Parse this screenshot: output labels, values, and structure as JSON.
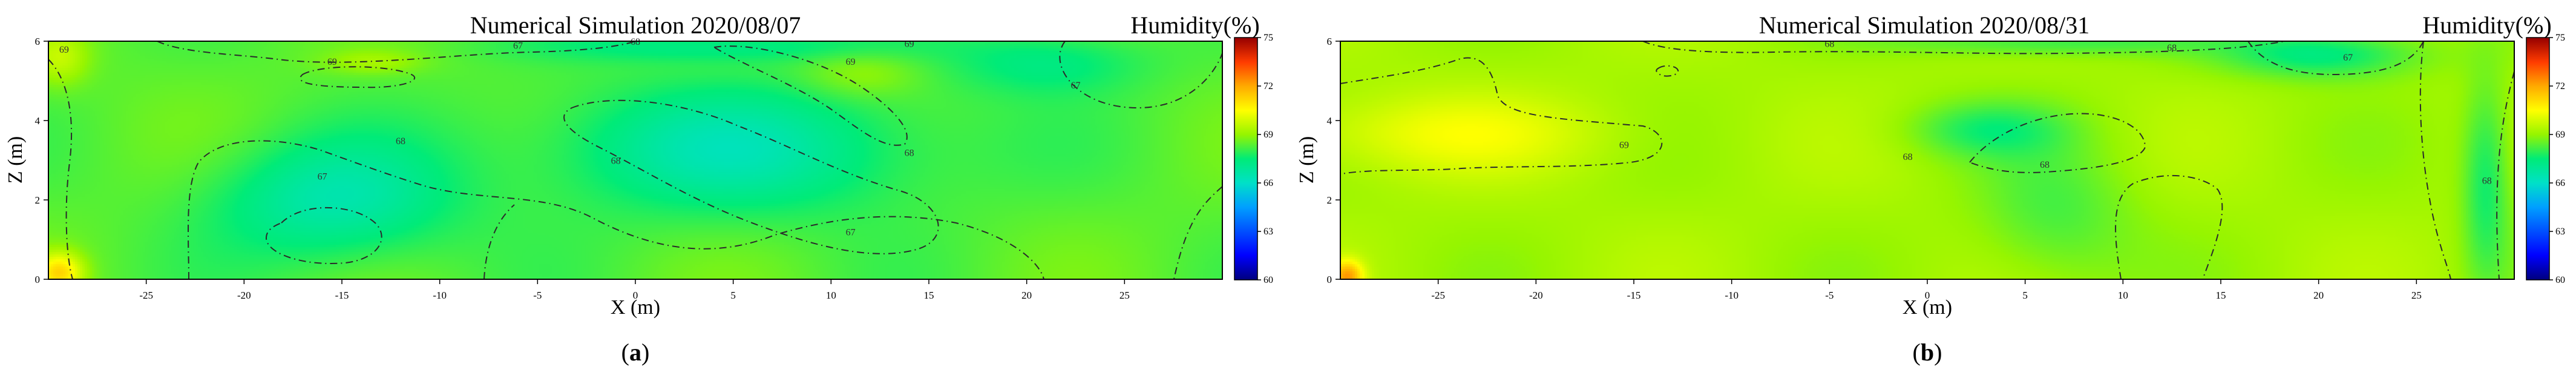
{
  "chart_data": [
    {
      "type": "heatmap",
      "panel_label": "a",
      "title": "Numerical Simulation 2020/08/07",
      "xlabel": "X (m)",
      "ylabel": "Z (m)",
      "colorbar_title": "Humidity(%)",
      "xlim": [
        -30,
        30
      ],
      "ylim": [
        0,
        6
      ],
      "x_ticks": [
        -25,
        -20,
        -15,
        -10,
        -5,
        0,
        5,
        10,
        15,
        20,
        25
      ],
      "y_ticks": [
        0,
        2,
        4,
        6
      ],
      "colorbar_ticks": [
        60,
        63,
        66,
        69,
        72,
        75
      ],
      "colorbar_range": [
        60,
        75
      ],
      "background_value": 68.4,
      "field": [
        {
          "x": -15.5,
          "z": 2.0,
          "value": 66.6,
          "sx": 6,
          "sz": 1.5
        },
        {
          "x": 5.0,
          "z": 3.3,
          "value": 66.6,
          "sx": 10,
          "sz": 1.6
        },
        {
          "x": 21.0,
          "z": 5.5,
          "value": 67.3,
          "sx": 5,
          "sz": 0.8
        },
        {
          "x": 4.0,
          "z": 5.9,
          "value": 67.3,
          "sx": 9,
          "sz": 0.4
        },
        {
          "x": 11.5,
          "z": 5.2,
          "value": 69.2,
          "sx": 3,
          "sz": 0.6
        },
        {
          "x": -13.5,
          "z": 5.5,
          "value": 69.2,
          "sx": 2.5,
          "sz": 0.3
        },
        {
          "x": -29.5,
          "z": 0.2,
          "value": 71.0,
          "sx": 1.2,
          "sz": 0.5
        },
        {
          "x": -29.5,
          "z": 5.6,
          "value": 69.6,
          "sx": 1.5,
          "sz": 0.7
        }
      ],
      "contour_labels": [
        {
          "x": -15.5,
          "z": 5.5,
          "text": "69"
        },
        {
          "x": -29.2,
          "z": 5.8,
          "text": "69"
        },
        {
          "x": -16.0,
          "z": 2.6,
          "text": "67"
        },
        {
          "x": -12.0,
          "z": 3.5,
          "text": "68"
        },
        {
          "x": -1.0,
          "z": 3.0,
          "text": "68"
        },
        {
          "x": 14.0,
          "z": 3.2,
          "text": "68"
        },
        {
          "x": 11.0,
          "z": 1.2,
          "text": "67"
        },
        {
          "x": 22.5,
          "z": 4.9,
          "text": "67"
        },
        {
          "x": 11.0,
          "z": 5.5,
          "text": "69"
        },
        {
          "x": -6.0,
          "z": 5.9,
          "text": "67"
        },
        {
          "x": 0.0,
          "z": 6.0,
          "text": "68"
        },
        {
          "x": 14.0,
          "z": 5.95,
          "text": "69"
        }
      ]
    },
    {
      "type": "heatmap",
      "panel_label": "b",
      "title": "Numerical Simulation 2020/08/31",
      "xlabel": "X (m)",
      "ylabel": "Z (m)",
      "colorbar_title": "Humidity(%)",
      "xlim": [
        -30,
        30
      ],
      "ylim": [
        0,
        6
      ],
      "x_ticks": [
        -25,
        -20,
        -15,
        -10,
        -5,
        0,
        5,
        10,
        15,
        20,
        25
      ],
      "y_ticks": [
        0,
        2,
        4,
        6
      ],
      "colorbar_ticks": [
        60,
        63,
        66,
        69,
        72,
        75
      ],
      "colorbar_range": [
        60,
        75
      ],
      "background_value": 69.2,
      "field": [
        {
          "x": -25.0,
          "z": 3.7,
          "value": 70.2,
          "sx": 9,
          "sz": 1.0
        },
        {
          "x": 3.0,
          "z": 3.8,
          "value": 67.9,
          "sx": 4,
          "sz": 0.7
        },
        {
          "x": 6.5,
          "z": 1.6,
          "value": 68.2,
          "sx": 4,
          "sz": 1.8
        },
        {
          "x": 20.0,
          "z": 5.7,
          "value": 67.3,
          "sx": 5,
          "sz": 0.6
        },
        {
          "x": 6.0,
          "z": 6.0,
          "value": 68.0,
          "sx": 8,
          "sz": 0.35
        },
        {
          "x": 28.5,
          "z": 2.5,
          "value": 67.6,
          "sx": 1.2,
          "sz": 2.5
        },
        {
          "x": -29.7,
          "z": 0.1,
          "value": 72.0,
          "sx": 0.8,
          "sz": 0.4
        }
      ],
      "contour_labels": [
        {
          "x": -15.5,
          "z": 3.4,
          "text": "69"
        },
        {
          "x": -1.0,
          "z": 3.1,
          "text": "68"
        },
        {
          "x": 6.0,
          "z": 2.9,
          "text": "68"
        },
        {
          "x": 21.5,
          "z": 5.6,
          "text": "67"
        },
        {
          "x": 12.5,
          "z": 5.85,
          "text": "68"
        },
        {
          "x": -5.0,
          "z": 5.95,
          "text": "68"
        },
        {
          "x": 28.6,
          "z": 2.5,
          "text": "68"
        }
      ]
    }
  ]
}
